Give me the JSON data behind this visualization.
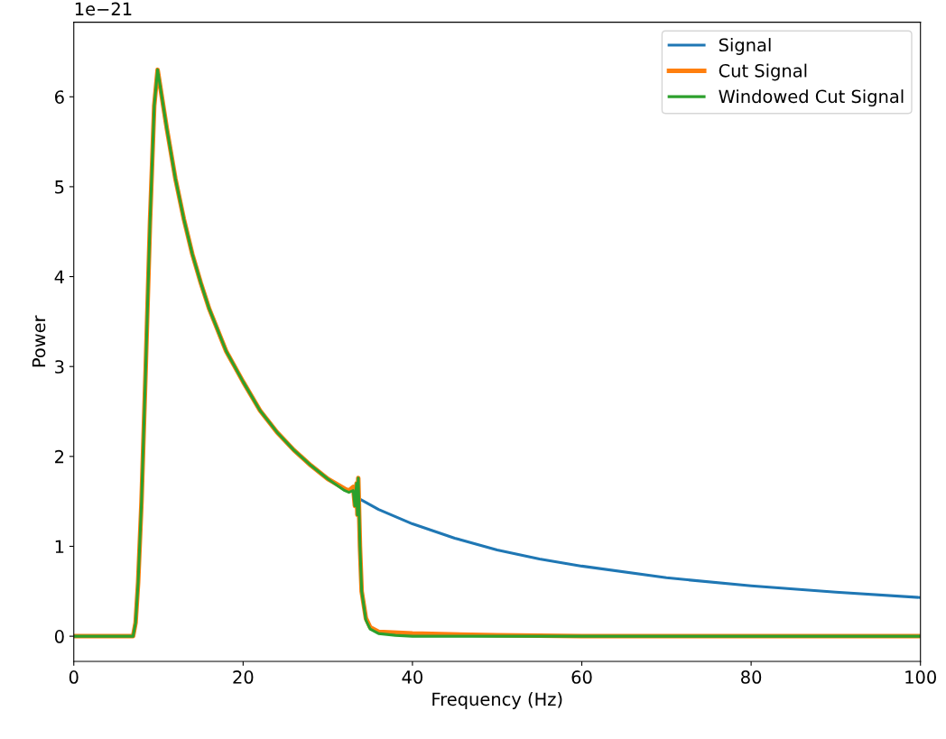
{
  "chart_data": {
    "type": "line",
    "xlabel": "Frequency (Hz)",
    "ylabel": "Power",
    "annotations": [
      "1e−21"
    ],
    "xlim": [
      0,
      100
    ],
    "xticks": [
      0,
      20,
      40,
      60,
      80,
      100
    ],
    "ylim": [
      -0.28,
      6.83
    ],
    "yticks": [
      0,
      1,
      2,
      3,
      4,
      5,
      6
    ],
    "grid": false,
    "legend": "top right",
    "line_style": "solid",
    "marker": "none",
    "series": [
      {
        "name": "Signal",
        "color": "#1f77b4",
        "x": [
          33.5,
          36,
          40,
          45,
          50,
          55,
          60,
          70,
          80,
          90,
          100
        ],
        "values": [
          1.54,
          1.41,
          1.25,
          1.09,
          0.96,
          0.86,
          0.78,
          0.65,
          0.56,
          0.49,
          0.43
        ]
      },
      {
        "name": "Cut Signal",
        "color": "#ff7f0e",
        "x": [
          0,
          7,
          7.3,
          7.6,
          8,
          8.5,
          9,
          9.5,
          9.9,
          11,
          12,
          13,
          14,
          15,
          16,
          18,
          20,
          22,
          24,
          26,
          28,
          30,
          32,
          32.5,
          33,
          33.2,
          33.4,
          33.5,
          33.6,
          33.8,
          34,
          34.5,
          35,
          36,
          40,
          50,
          60,
          100
        ],
        "values": [
          0,
          0,
          0.15,
          0.6,
          1.5,
          3,
          4.6,
          5.9,
          6.3,
          5.64,
          5.09,
          4.64,
          4.25,
          3.93,
          3.64,
          3.17,
          2.83,
          2.51,
          2.27,
          2.07,
          1.9,
          1.75,
          1.64,
          1.62,
          1.66,
          1.45,
          1.7,
          1.35,
          1.76,
          1.0,
          0.5,
          0.2,
          0.1,
          0.05,
          0.03,
          0.01,
          0,
          0
        ]
      },
      {
        "name": "Windowed Cut Signal",
        "color": "#2ca02c",
        "x": [
          0,
          7,
          7.3,
          7.6,
          8,
          8.5,
          9,
          9.5,
          9.9,
          11,
          12,
          13,
          14,
          15,
          16,
          18,
          20,
          22,
          24,
          26,
          28,
          30,
          32,
          32.5,
          33,
          33.2,
          33.4,
          33.5,
          33.6,
          33.8,
          34,
          34.5,
          35,
          36,
          38,
          40,
          100
        ],
        "values": [
          0,
          0,
          0.15,
          0.6,
          1.5,
          3,
          4.6,
          5.9,
          6.3,
          5.64,
          5.09,
          4.64,
          4.25,
          3.93,
          3.64,
          3.17,
          2.83,
          2.51,
          2.27,
          2.07,
          1.9,
          1.75,
          1.62,
          1.6,
          1.62,
          1.45,
          1.7,
          1.35,
          1.76,
          1.0,
          0.5,
          0.18,
          0.08,
          0.03,
          0.01,
          0,
          0
        ]
      }
    ]
  }
}
